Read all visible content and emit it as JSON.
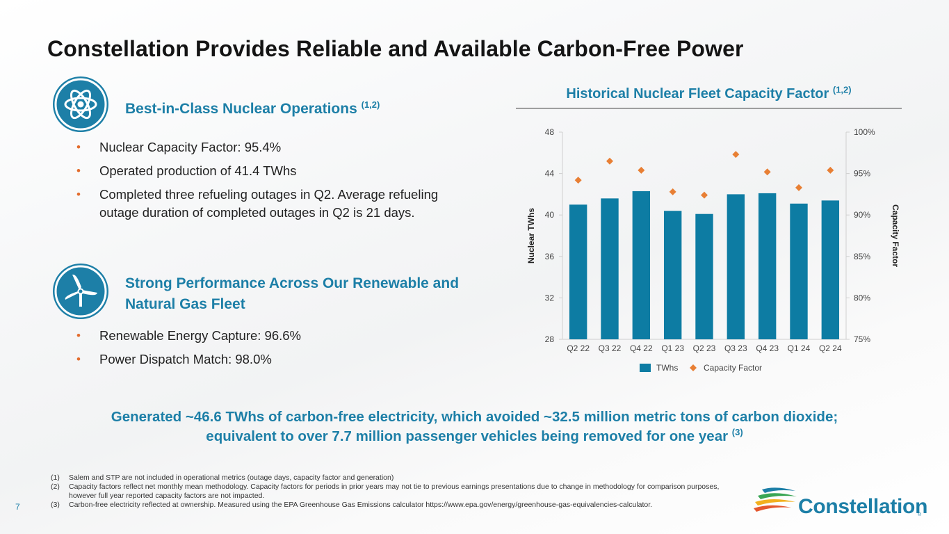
{
  "title": "Constellation Provides Reliable and Available Carbon-Free Power",
  "section1": {
    "icon": "atom-icon",
    "heading": "Best-in-Class Nuclear Operations",
    "heading_sup": "(1,2)",
    "bullets": [
      "Nuclear Capacity Factor: 95.4%",
      "Operated production of 41.4 TWhs",
      "Completed three refueling outages in Q2. Average refueling outage duration of completed outages in Q2 is 21 days."
    ]
  },
  "section2": {
    "icon": "wind-turbine-icon",
    "heading_line1": "Strong Performance Across Our Renewable and",
    "heading_line2": "Natural Gas Fleet",
    "bullets": [
      "Renewable Energy Capture: 96.6%",
      "Power Dispatch Match: 98.0%"
    ]
  },
  "chart_heading": "Historical Nuclear Fleet Capacity Factor",
  "chart_heading_sup": "(1,2)",
  "chart_data": {
    "type": "bar",
    "title": "Historical Nuclear Fleet Capacity Factor",
    "categories": [
      "Q2 22",
      "Q3 22",
      "Q4 22",
      "Q1 23",
      "Q2 23",
      "Q3 23",
      "Q4 23",
      "Q1 24",
      "Q2 24"
    ],
    "series": [
      {
        "name": "TWhs",
        "type": "bar",
        "axis": "left",
        "values": [
          41.0,
          41.6,
          42.3,
          40.4,
          40.1,
          42.0,
          42.1,
          41.1,
          41.4
        ]
      },
      {
        "name": "Capacity Factor",
        "type": "scatter",
        "axis": "right",
        "values": [
          94.2,
          96.5,
          95.4,
          92.8,
          92.4,
          97.3,
          95.2,
          93.3,
          95.4
        ]
      }
    ],
    "ylabel": "Nuclear TWhs",
    "y2label": "Capacity Factor",
    "ylim": [
      28,
      48
    ],
    "yticks": [
      "28",
      "32",
      "36",
      "40",
      "44",
      "48"
    ],
    "y2lim": [
      75,
      100
    ],
    "y2ticks": [
      "75%",
      "80%",
      "85%",
      "90%",
      "95%",
      "100%"
    ],
    "legend_position": "bottom",
    "colors": {
      "bar": "#0d7ca3",
      "marker": "#e87f34"
    }
  },
  "callout_line1": "Generated ~46.6 TWhs of carbon-free electricity, which avoided ~32.5 million metric tons of carbon dioxide;",
  "callout_line2": "equivalent to over 7.7 million passenger vehicles being removed for one year",
  "callout_sup": "(3)",
  "footnotes": [
    {
      "num": "(1)",
      "text": "Salem and STP are not included in operational metrics (outage days, capacity factor and generation)"
    },
    {
      "num": "(2)",
      "text": "Capacity factors reflect net monthly mean methodology. Capacity factors for periods in prior years may not tie to previous earnings presentations due to change in methodology for comparison purposes, however full year reported capacity factors are not impacted."
    },
    {
      "num": "(3)",
      "text": "Carbon-free electricity reflected at ownership. Measured using the EPA Greenhouse Gas Emissions calculator https://www.epa.gov/energy/greenhouse-gas-equivalencies-calculator."
    }
  ],
  "page_number": "7",
  "logo_text": "Constellation",
  "logo_reg": "®"
}
